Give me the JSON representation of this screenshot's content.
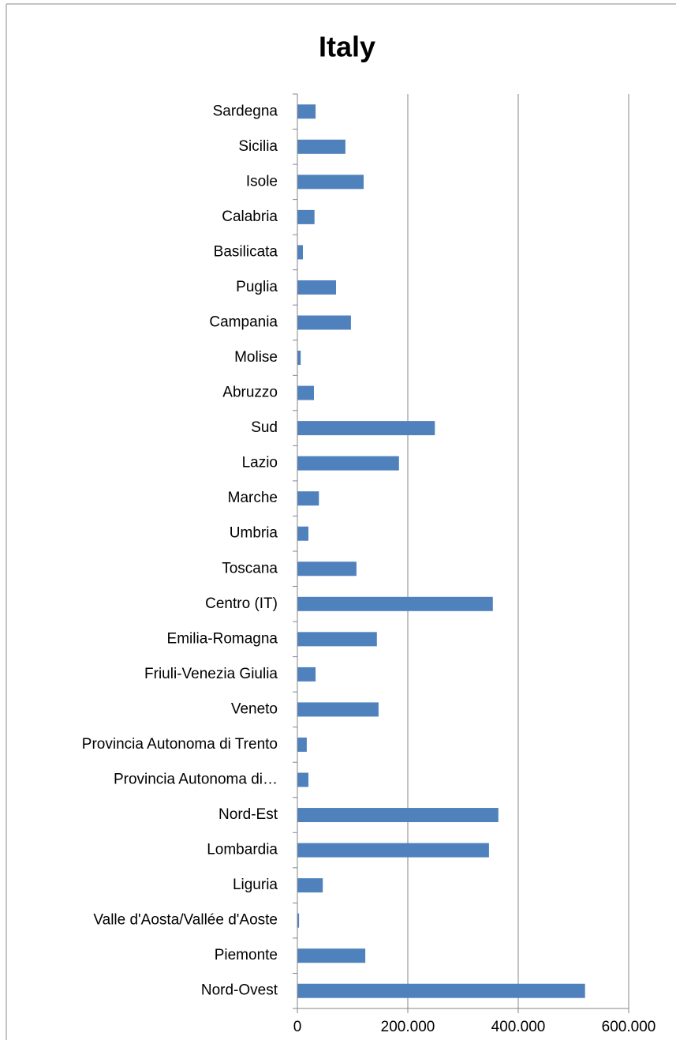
{
  "chart_data": {
    "type": "bar",
    "orientation": "horizontal",
    "title": "Italy",
    "categories": [
      "Nord-Ovest",
      "Piemonte",
      "Valle d'Aosta/Vallée d'Aoste",
      "Liguria",
      "Lombardia",
      "Nord-Est",
      "Provincia Autonoma di…",
      "Provincia Autonoma di Trento",
      "Veneto",
      "Friuli-Venezia Giulia",
      "Emilia-Romagna",
      "Centro (IT)",
      "Toscana",
      "Umbria",
      "Marche",
      "Lazio",
      "Sud",
      "Abruzzo",
      "Molise",
      "Campania",
      "Puglia",
      "Basilicata",
      "Calabria",
      "Isole",
      "Sicilia",
      "Sardegna"
    ],
    "values": [
      521000,
      123000,
      3000,
      46000,
      347000,
      364000,
      20000,
      17000,
      147000,
      33000,
      144000,
      354000,
      107000,
      20000,
      39000,
      184000,
      249000,
      30000,
      6000,
      97000,
      70000,
      10000,
      31000,
      120000,
      87000,
      33000
    ],
    "color": "#4f81bd",
    "xlim": [
      0,
      600000
    ],
    "xticks": [
      0,
      {
        "value": 200000,
        "label": "200.000"
      },
      {
        "value": 400000,
        "label": "400.000"
      },
      {
        "value": 600000,
        "label": "600.000"
      }
    ],
    "grid": true
  }
}
